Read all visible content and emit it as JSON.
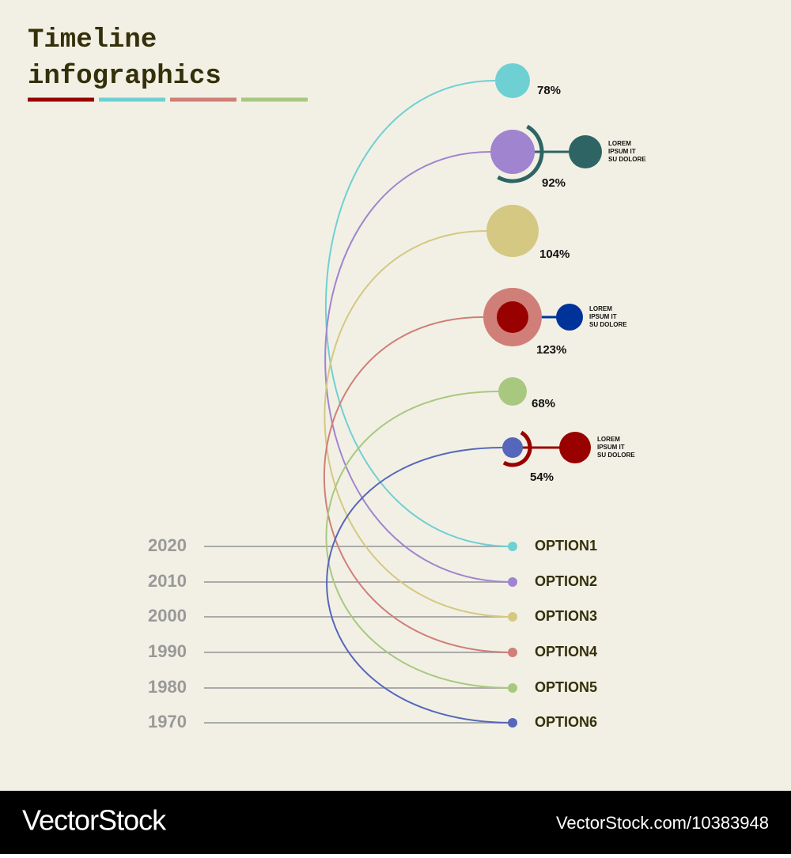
{
  "header": {
    "title": [
      "Timeline",
      "infographics"
    ]
  },
  "items": [
    {
      "year": "2020",
      "option": "OPTION1",
      "percent": "78%"
    },
    {
      "year": "2010",
      "option": "OPTION2",
      "percent": "92%",
      "note": [
        "LOREM",
        "IPSUM IT",
        "SU DOLORE"
      ]
    },
    {
      "year": "2000",
      "option": "OPTION3",
      "percent": "104%"
    },
    {
      "year": "1990",
      "option": "OPTION4",
      "percent": "123%",
      "note": [
        "LOREM",
        "IPSUM IT",
        "SU DOLORE"
      ]
    },
    {
      "year": "1980",
      "option": "OPTION5",
      "percent": "68%"
    },
    {
      "year": "1970",
      "option": "OPTION6",
      "percent": "54%",
      "note": [
        "LOREM",
        "IPSUM IT",
        "SU DOLORE"
      ]
    }
  ],
  "footer": {
    "brand": "VectorStock",
    "url": "VectorStock.com/10383948"
  }
}
